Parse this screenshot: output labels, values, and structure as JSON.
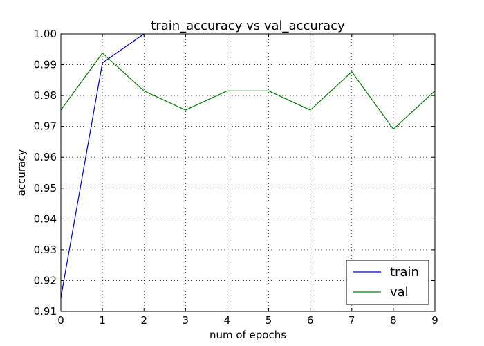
{
  "chart_data": {
    "type": "line",
    "title": "train_accuracy vs val_accuracy",
    "xlabel": "num of epochs",
    "ylabel": "accuracy",
    "xlim": [
      0,
      9
    ],
    "ylim": [
      0.91,
      1.0
    ],
    "xticks": [
      "0",
      "1",
      "2",
      "3",
      "4",
      "5",
      "6",
      "7",
      "8",
      "9"
    ],
    "yticks": [
      "0.91",
      "0.92",
      "0.93",
      "0.94",
      "0.95",
      "0.96",
      "0.97",
      "0.98",
      "0.99",
      "1.00"
    ],
    "grid": true,
    "legend_position": "lower-right",
    "series": [
      {
        "name": "train",
        "color": "#0000bf",
        "x": [
          0,
          1,
          2
        ],
        "y": [
          0.9145,
          0.9906,
          1.0
        ]
      },
      {
        "name": "val",
        "color": "#007f00",
        "x": [
          0,
          1,
          2,
          3,
          4,
          5,
          6,
          7,
          8,
          9
        ],
        "y": [
          0.9753,
          0.9938,
          0.9815,
          0.9753,
          0.9815,
          0.9815,
          0.9753,
          0.9877,
          0.9691,
          0.9815
        ]
      }
    ]
  }
}
